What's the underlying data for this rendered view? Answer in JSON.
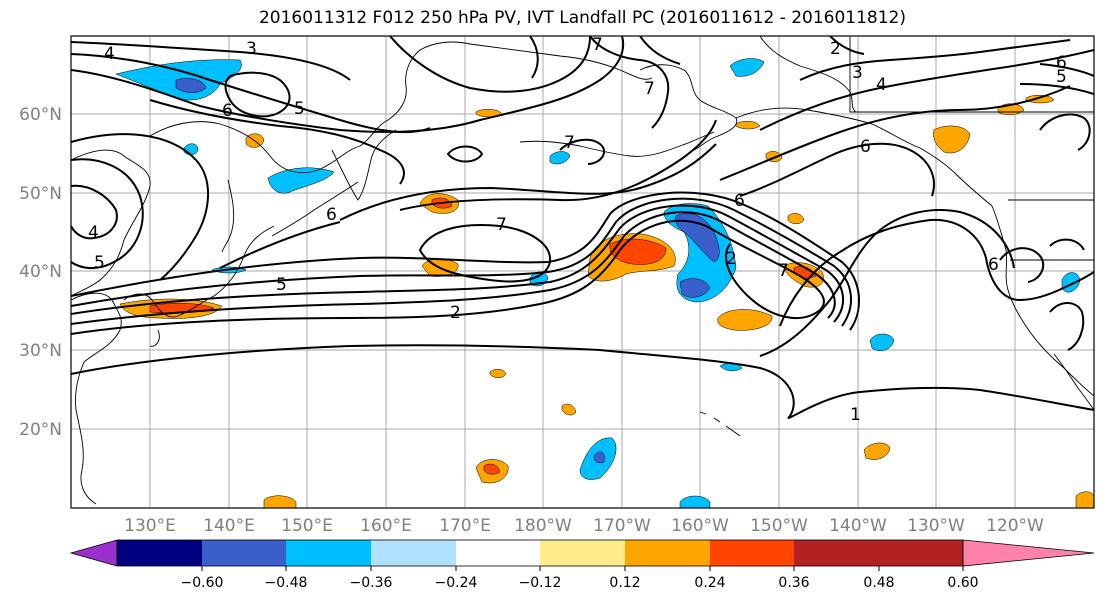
{
  "title": "2016011312 F012 250 hPa PV, IVT Landfall PC (2016011612 - 2016011812)",
  "lat_labels": [
    "60°N",
    "50°N",
    "40°N",
    "30°N",
    "20°N"
  ],
  "lon_labels": [
    "130°E",
    "140°E",
    "150°E",
    "160°E",
    "170°E",
    "180°W",
    "170°W",
    "160°W",
    "150°W",
    "140°W",
    "130°W",
    "120°W"
  ],
  "contour_labels": [
    "4",
    "3",
    "7",
    "2",
    "3",
    "4",
    "6",
    "5",
    "6",
    "5",
    "6",
    "7",
    "6",
    "7",
    "4",
    "6",
    "5",
    "5",
    "2",
    "2",
    "7",
    "6",
    "1",
    "7"
  ],
  "colorbar": {
    "ticks": [
      "−0.60",
      "−0.48",
      "−0.36",
      "−0.24",
      "−0.12",
      "0.12",
      "0.24",
      "0.36",
      "0.48",
      "0.60"
    ],
    "colors": [
      "#9932cc",
      "#000080",
      "#3a5fcd",
      "#00bfff",
      "#b0e2ff",
      "#ffffff",
      "#ffec8b",
      "#ffa500",
      "#ff4500",
      "#b22222",
      "#ff82ab"
    ]
  }
}
